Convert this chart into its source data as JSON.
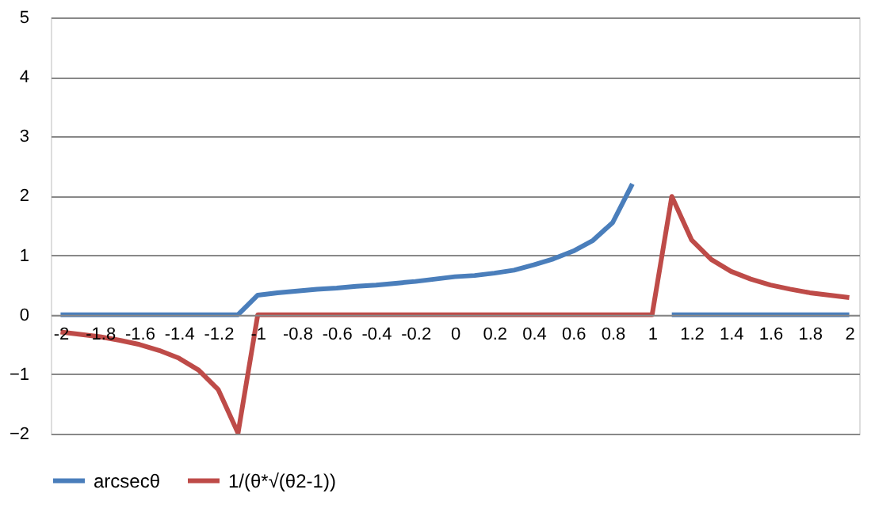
{
  "chart_data": {
    "type": "line",
    "categories": [
      "-2",
      null,
      "-1.8",
      null,
      "-1.6",
      null,
      "-1.4",
      null,
      "-1.2",
      null,
      "-1",
      null,
      "-0.8",
      null,
      "-0.6",
      null,
      "-0.4",
      null,
      "-0.2",
      null,
      "0",
      null,
      "0.2",
      null,
      "0.4",
      null,
      "0.6",
      null,
      "0.8",
      null,
      "1",
      null,
      "1.2",
      null,
      "1.4",
      null,
      "1.6",
      null,
      "1.8",
      null,
      "2"
    ],
    "series": [
      {
        "name": "arcsecθ",
        "color": "#4a7ebb",
        "values": [
          0,
          0,
          0,
          0,
          0,
          0,
          0,
          0,
          0,
          0,
          0.33,
          0.37,
          0.4,
          0.43,
          0.45,
          0.48,
          0.5,
          0.53,
          0.56,
          0.6,
          0.64,
          0.66,
          0.7,
          0.75,
          0.84,
          0.94,
          1.07,
          1.25,
          1.55,
          2.2,
          null,
          0,
          0,
          0,
          0,
          0,
          0,
          0,
          0,
          0,
          0
        ]
      },
      {
        "name": "1/(θ*√(θ2-1))",
        "color": "#be4b48",
        "values": [
          -0.29,
          -0.33,
          -0.37,
          -0.43,
          -0.5,
          -0.6,
          -0.73,
          -0.93,
          -1.26,
          -1.99,
          0,
          0,
          0,
          0,
          0,
          0,
          0,
          0,
          0,
          0,
          0,
          0,
          0,
          0,
          0,
          0,
          0,
          0,
          0,
          0,
          0,
          1.99,
          1.26,
          0.93,
          0.73,
          0.6,
          0.5,
          0.43,
          0.37,
          0.33,
          0.29
        ]
      }
    ],
    "ylim": [
      -2,
      5
    ],
    "yticks": [
      -2,
      -1,
      0,
      1,
      2,
      3,
      4,
      5
    ],
    "grid": "y",
    "legend": "bottom",
    "line_style": "solid",
    "marker": "none"
  }
}
